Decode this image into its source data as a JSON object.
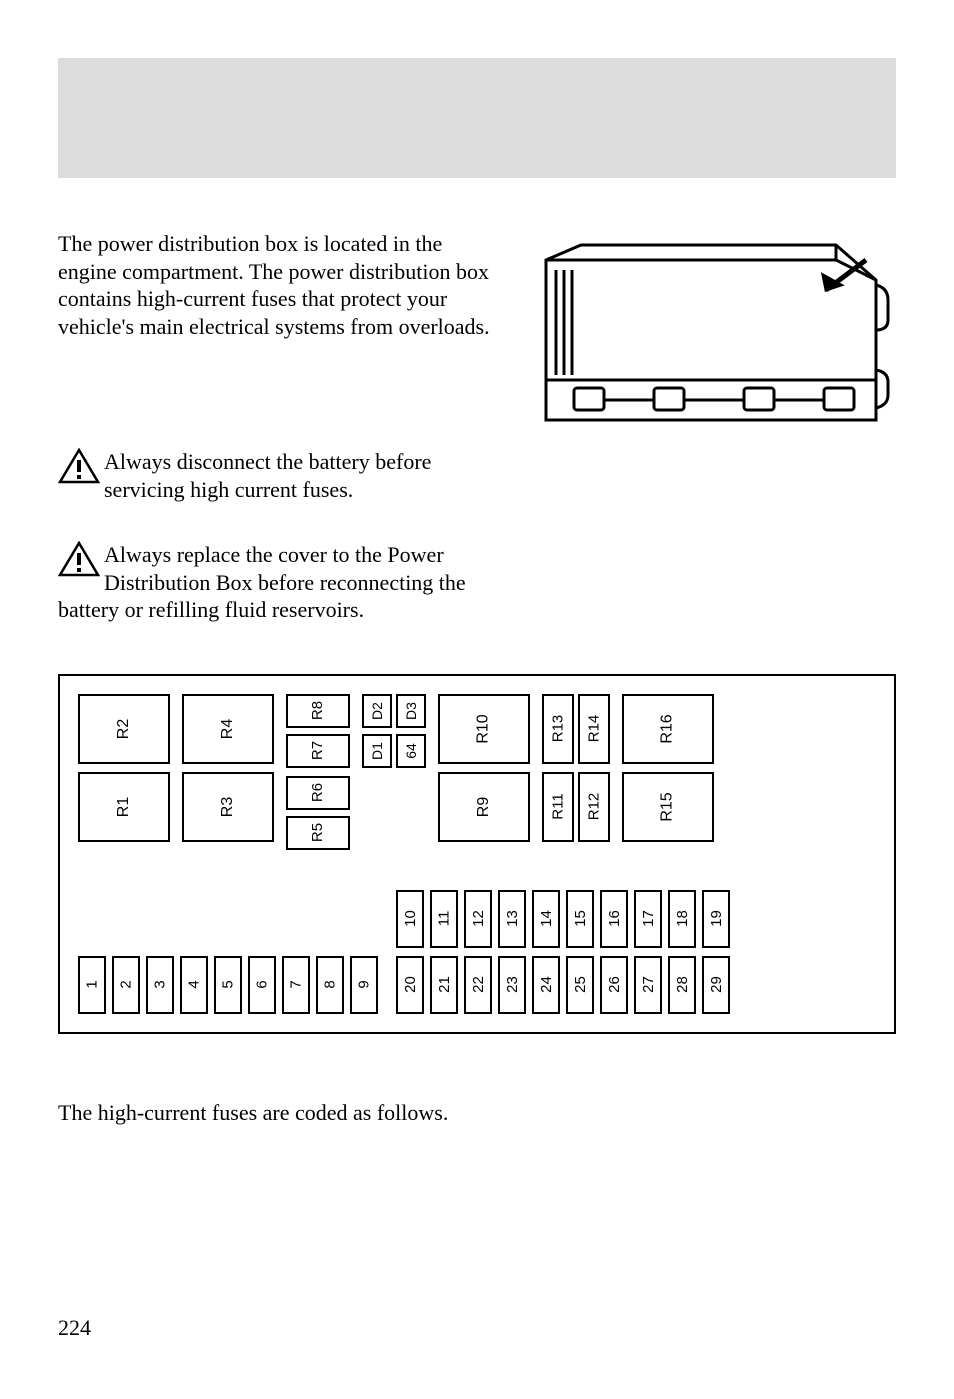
{
  "header_band_color": "#dcdcdc",
  "intro_para": "The power distribution box is located in the engine compartment. The power distribution box contains high-current fuses that protect your vehicle's main electrical systems from overloads.",
  "warning1": "Always disconnect the battery before servicing high current fuses.",
  "warning2": "Always replace the cover to the Power Distribution Box before reconnecting the battery or refilling fluid reservoirs.",
  "footer_line": "The high-current fuses are coded as follows.",
  "page_number": "224",
  "relays": {
    "big": [
      "R1",
      "R2",
      "R3",
      "R4",
      "R9",
      "R10",
      "R15",
      "R16"
    ],
    "med": [
      "R5",
      "R6",
      "R7",
      "R8"
    ],
    "narrow": [
      "R11",
      "R12",
      "R13",
      "R14"
    ],
    "small": [
      "D1",
      "64",
      "D2",
      "D3"
    ]
  },
  "fuses": {
    "left": [
      "1",
      "2",
      "3",
      "4",
      "5",
      "6",
      "7",
      "8",
      "9"
    ],
    "right_top": [
      "10",
      "11",
      "12",
      "13",
      "14",
      "15",
      "16",
      "17",
      "18",
      "19"
    ],
    "right_bot": [
      "20",
      "21",
      "22",
      "23",
      "24",
      "25",
      "26",
      "27",
      "28",
      "29"
    ]
  },
  "colors": {
    "border": "#000000",
    "bg": "#ffffff",
    "text": "#000000"
  }
}
